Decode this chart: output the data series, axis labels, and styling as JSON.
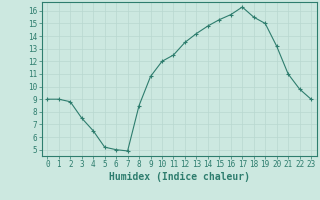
{
  "x": [
    0,
    1,
    2,
    3,
    4,
    5,
    6,
    7,
    8,
    9,
    10,
    11,
    12,
    13,
    14,
    15,
    16,
    17,
    18,
    19,
    20,
    21,
    22,
    23
  ],
  "y": [
    9.0,
    9.0,
    8.8,
    7.5,
    6.5,
    5.2,
    5.0,
    4.9,
    8.5,
    10.8,
    12.0,
    12.5,
    13.5,
    14.2,
    14.8,
    15.3,
    15.7,
    16.3,
    15.5,
    15.0,
    13.2,
    11.0,
    9.8,
    9.0
  ],
  "xlabel": "Humidex (Indice chaleur)",
  "xlim": [
    -0.5,
    23.5
  ],
  "ylim": [
    4.5,
    16.7
  ],
  "yticks": [
    5,
    6,
    7,
    8,
    9,
    10,
    11,
    12,
    13,
    14,
    15,
    16
  ],
  "xticks": [
    0,
    1,
    2,
    3,
    4,
    5,
    6,
    7,
    8,
    9,
    10,
    11,
    12,
    13,
    14,
    15,
    16,
    17,
    18,
    19,
    20,
    21,
    22,
    23
  ],
  "line_color": "#2e7d6e",
  "marker": "+",
  "bg_color": "#cce8e0",
  "grid_color": "#b8d8d0",
  "tick_fontsize": 5.5,
  "xlabel_fontsize": 7,
  "text_color": "#2e7d6e",
  "spine_color": "#2e7d6e",
  "markersize": 3,
  "linewidth": 0.8
}
